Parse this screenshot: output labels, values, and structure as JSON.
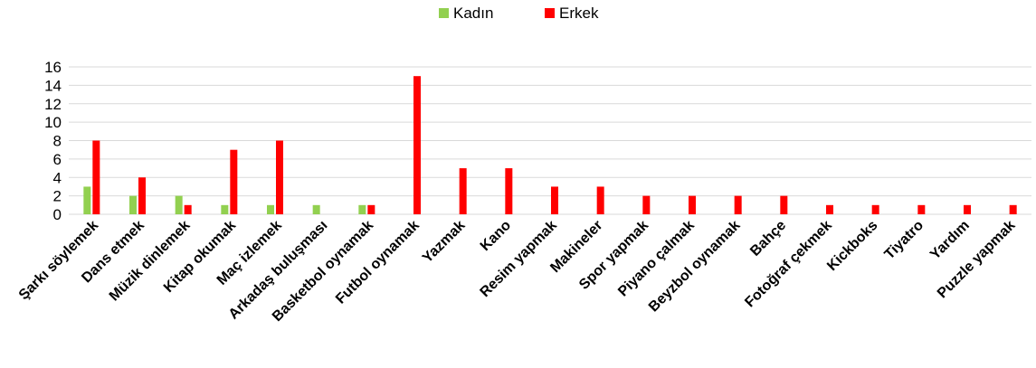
{
  "chart_data": {
    "type": "bar",
    "title": "",
    "xlabel": "",
    "ylabel": "",
    "ylim": [
      0,
      16
    ],
    "yticks": [
      0,
      2,
      4,
      6,
      8,
      10,
      12,
      14,
      16
    ],
    "grid": true,
    "legend_position": "top-center",
    "categories": [
      "Şarkı söylemek",
      "Dans etmek",
      "Müzik dinlemek",
      "Kitap okumak",
      "Maç izlemek",
      "Arkadaş buluşması",
      "Basketbol oynamak",
      "Futbol oynamak",
      "Yazmak",
      "Kano",
      "Resim yapmak",
      "Makineler",
      "Spor yapmak",
      "Piyano çalmak",
      "Beyzbol oynamak",
      "Bahçe",
      "Fotoğraf çekmek",
      "Kickboks",
      "Tiyatro",
      "Yardım",
      "Puzzle yapmak"
    ],
    "series": [
      {
        "name": "Kadın",
        "color": "#92d050",
        "values": [
          3,
          2,
          2,
          1,
          1,
          1,
          1,
          0,
          0,
          0,
          0,
          0,
          0,
          0,
          0,
          0,
          0,
          0,
          0,
          0,
          0
        ]
      },
      {
        "name": "Erkek",
        "color": "#ff0000",
        "values": [
          8,
          4,
          1,
          7,
          8,
          0,
          1,
          15,
          5,
          5,
          3,
          3,
          2,
          2,
          2,
          2,
          1,
          1,
          1,
          1,
          1
        ]
      }
    ]
  }
}
